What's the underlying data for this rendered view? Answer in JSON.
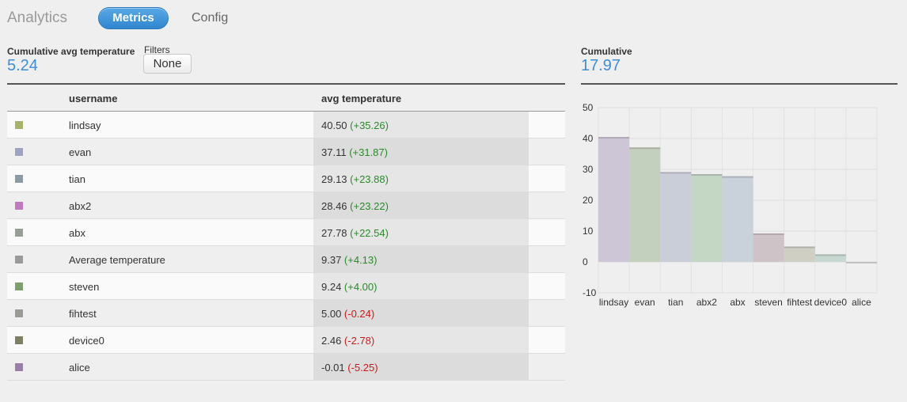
{
  "nav": {
    "title": "Analytics",
    "tabs": [
      {
        "label": "Metrics",
        "active": true
      },
      {
        "label": "Config",
        "active": false
      }
    ]
  },
  "summary": {
    "label": "Cumulative avg temperature",
    "value": "5.24",
    "filters_label": "Filters",
    "filters_value": "None"
  },
  "table": {
    "headers": [
      "username",
      "avg temperature"
    ],
    "rows": [
      {
        "color": "#a7b36d",
        "username": "lindsay",
        "value": "40.50",
        "delta": "(+35.26)",
        "positive": true
      },
      {
        "color": "#9ea3c2",
        "username": "evan",
        "value": "37.11",
        "delta": "(+31.87)",
        "positive": true
      },
      {
        "color": "#8a9ba4",
        "username": "tian",
        "value": "29.13",
        "delta": "(+23.88)",
        "positive": true
      },
      {
        "color": "#c07ac0",
        "username": "abx2",
        "value": "28.46",
        "delta": "(+23.22)",
        "positive": true
      },
      {
        "color": "#979e95",
        "username": "abx",
        "value": "27.78",
        "delta": "(+22.54)",
        "positive": true
      },
      {
        "color": "#9a9a9a",
        "username": "Average temperature",
        "value": "9.37",
        "delta": "(+4.13)",
        "positive": true
      },
      {
        "color": "#7f9f6a",
        "username": "steven",
        "value": "9.24",
        "delta": "(+4.00)",
        "positive": true
      },
      {
        "color": "#9a9a96",
        "username": "fihtest",
        "value": "5.00",
        "delta": "(-0.24)",
        "positive": false
      },
      {
        "color": "#7e7e62",
        "username": "device0",
        "value": "2.46",
        "delta": "(-2.78)",
        "positive": false
      },
      {
        "color": "#9a80a8",
        "username": "alice",
        "value": "-0.01",
        "delta": "(-5.25)",
        "positive": false
      }
    ]
  },
  "right_summary": {
    "label": "Cumulative",
    "value": "17.97"
  },
  "chart_data": {
    "type": "bar",
    "categories": [
      "lindsay",
      "evan",
      "tian",
      "abx2",
      "abx",
      "steven",
      "fihtest",
      "device0",
      "alice"
    ],
    "values": [
      40.5,
      37.11,
      29.13,
      28.46,
      27.78,
      9.24,
      5.0,
      2.46,
      -0.01
    ],
    "colors": [
      "#cdc6d6",
      "#c3d0bd",
      "#c9ced8",
      "#c4d6c4",
      "#c9d2da",
      "#cec4c7",
      "#cfcfc4",
      "#c6d8d0",
      "#d0cfd6"
    ],
    "ylim": [
      -10,
      50
    ],
    "yticks": [
      50,
      40,
      30,
      20,
      10,
      0,
      -10
    ],
    "grid": true
  }
}
